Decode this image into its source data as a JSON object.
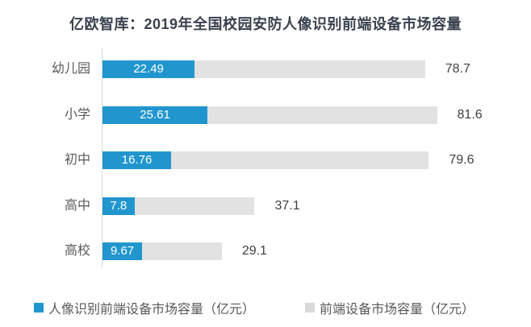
{
  "title": "亿欧智库：2019年全国校园安防人像识别前端设备市场容量",
  "chart_data": {
    "type": "bar",
    "orientation": "horizontal",
    "categories": [
      "幼儿园",
      "小学",
      "初中",
      "高中",
      "高校"
    ],
    "series": [
      {
        "name": "人像识别前端设备市场容量（亿元）",
        "color": "#2196CE",
        "values": [
          22.49,
          25.61,
          16.76,
          7.8,
          9.67
        ],
        "label_position": "inside",
        "label_color": "#FFFFFF"
      },
      {
        "name": "前端设备市场容量（亿元）",
        "color": "#E2E2E2",
        "values": [
          78.7,
          81.6,
          79.6,
          37.1,
          29.1
        ],
        "label_position": "outside",
        "label_color": "#404040"
      }
    ],
    "xlim": [
      0,
      130
    ],
    "grid": false,
    "legend_position": "bottom",
    "axis_line_color": "#D9D9D9"
  },
  "legend": {
    "swatch_colors": [
      "#2196CE",
      "#D9D9D9"
    ]
  }
}
